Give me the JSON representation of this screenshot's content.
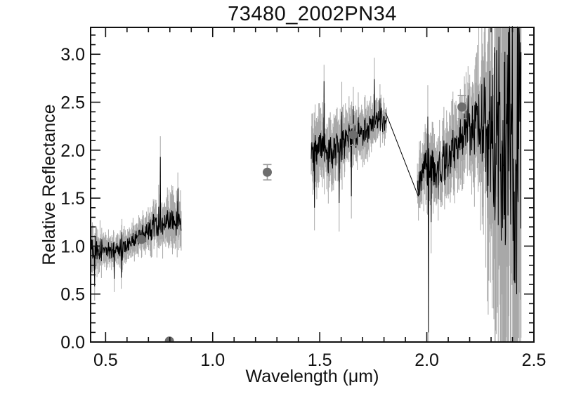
{
  "figure": {
    "title": "73480_2002PN34",
    "xlabel": "Wavelength (μm)",
    "ylabel": "Relative Reflectance"
  },
  "chart_data": {
    "type": "line",
    "title": "73480_2002PN34",
    "xlabel": "Wavelength (μm)",
    "ylabel": "Relative Reflectance",
    "xlim": [
      0.43,
      2.5
    ],
    "ylim": [
      0.0,
      3.28
    ],
    "x_major_ticks": [
      0.5,
      1.0,
      1.5,
      2.0,
      2.5
    ],
    "x_tick_labels": [
      "0.5",
      "1.0",
      "1.5",
      "2.0",
      "2.5"
    ],
    "y_major_ticks": [
      0.0,
      0.5,
      1.0,
      1.5,
      2.0,
      2.5,
      3.0
    ],
    "y_tick_labels": [
      "0.0",
      "0.5",
      "1.0",
      "1.5",
      "2.0",
      "2.5",
      "3.0"
    ],
    "minor_tick_step": 0.1,
    "grid": false,
    "legend": null,
    "colors": {
      "spectrum": "#000000",
      "error_bars": "#a8a8a8",
      "photometry": "#6e6e6e",
      "photometry_error": "#989898",
      "frame": "#111111",
      "text": "#111111",
      "background": "#ffffff"
    },
    "noise_seed": 20021134,
    "segments": [
      {
        "name": "visible",
        "range": [
          0.43,
          0.853
        ],
        "n": 270,
        "trend": [
          [
            0.43,
            0.95
          ],
          [
            0.47,
            0.96
          ],
          [
            0.5,
            0.95
          ],
          [
            0.55,
            0.97
          ],
          [
            0.6,
            1.02
          ],
          [
            0.65,
            1.09
          ],
          [
            0.7,
            1.16
          ],
          [
            0.75,
            1.22
          ],
          [
            0.8,
            1.28
          ],
          [
            0.853,
            1.26
          ]
        ],
        "noise": [
          [
            0.43,
            0.2
          ],
          [
            0.47,
            0.13
          ],
          [
            0.52,
            0.1
          ],
          [
            0.6,
            0.11
          ],
          [
            0.67,
            0.12
          ],
          [
            0.72,
            0.15
          ],
          [
            0.78,
            0.18
          ],
          [
            0.853,
            0.21
          ]
        ],
        "spikes": [
          [
            0.449,
            0.58
          ],
          [
            0.54,
            0.66
          ],
          [
            0.573,
            0.67
          ],
          [
            0.756,
            1.93
          ],
          [
            0.761,
            1.15
          ],
          [
            0.838,
            1.6
          ]
        ]
      },
      {
        "name": "h-band",
        "range": [
          1.46,
          1.812
        ],
        "n": 230,
        "trend": [
          [
            1.46,
            1.97
          ],
          [
            1.5,
            2.03
          ],
          [
            1.53,
            1.96
          ],
          [
            1.57,
            2.0
          ],
          [
            1.62,
            2.08
          ],
          [
            1.67,
            2.16
          ],
          [
            1.72,
            2.22
          ],
          [
            1.76,
            2.3
          ],
          [
            1.79,
            2.32
          ],
          [
            1.812,
            2.28
          ]
        ],
        "noise": [
          [
            1.46,
            0.25
          ],
          [
            1.55,
            0.23
          ],
          [
            1.65,
            0.2
          ],
          [
            1.75,
            0.16
          ],
          [
            1.812,
            0.12
          ]
        ],
        "spikes": [
          [
            1.475,
            1.4
          ],
          [
            1.52,
            2.72
          ],
          [
            1.59,
            1.45
          ],
          [
            1.648,
            1.52
          ],
          [
            1.755,
            2.74
          ]
        ]
      },
      {
        "name": "k-band",
        "range": [
          1.956,
          2.44
        ],
        "n": 310,
        "trend": [
          [
            1.956,
            1.55
          ],
          [
            1.98,
            1.8
          ],
          [
            2.0,
            1.85
          ],
          [
            2.03,
            1.8
          ],
          [
            2.06,
            1.78
          ],
          [
            2.09,
            1.9
          ],
          [
            2.12,
            2.0
          ],
          [
            2.16,
            2.1
          ],
          [
            2.2,
            2.2
          ],
          [
            2.25,
            2.3
          ],
          [
            2.3,
            2.25
          ],
          [
            2.35,
            2.1
          ],
          [
            2.4,
            1.95
          ],
          [
            2.44,
            1.85
          ]
        ],
        "noise": [
          [
            1.956,
            0.2
          ],
          [
            2.0,
            0.25
          ],
          [
            2.05,
            0.22
          ],
          [
            2.1,
            0.27
          ],
          [
            2.15,
            0.3
          ],
          [
            2.2,
            0.33
          ],
          [
            2.24,
            0.45
          ],
          [
            2.28,
            0.8
          ],
          [
            2.32,
            1.4
          ],
          [
            2.36,
            1.9
          ],
          [
            2.4,
            2.1
          ],
          [
            2.44,
            2.25
          ]
        ],
        "spikes": [
          [
            2.005,
            2.35
          ],
          [
            2.008,
            0.1
          ],
          [
            2.02,
            1.25
          ]
        ]
      }
    ],
    "connector": {
      "from": [
        1.808,
        2.39
      ],
      "to": [
        1.96,
        1.52
      ]
    },
    "photometry_points": [
      {
        "x": 0.667,
        "y": 1.07,
        "err": 0
      },
      {
        "x": 0.798,
        "y": 0.01,
        "err": 0
      },
      {
        "x": 1.255,
        "y": 1.77,
        "err": 0.08
      },
      {
        "x": 1.656,
        "y": 2.16,
        "err": 0.11
      },
      {
        "x": 2.164,
        "y": 2.45,
        "err": 0.12
      }
    ]
  }
}
